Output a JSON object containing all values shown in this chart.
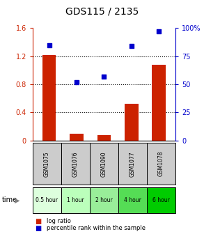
{
  "title": "GDS115 / 2135",
  "samples": [
    "GSM1075",
    "GSM1076",
    "GSM1090",
    "GSM1077",
    "GSM1078"
  ],
  "time_labels": [
    "0.5 hour",
    "1 hour",
    "2 hour",
    "4 hour",
    "6 hour"
  ],
  "log_ratio": [
    1.22,
    0.1,
    0.08,
    0.52,
    1.08
  ],
  "percentile": [
    85,
    52,
    57,
    84,
    97
  ],
  "bar_color": "#cc2200",
  "dot_color": "#0000cc",
  "ylim_left": [
    0,
    1.6
  ],
  "ylim_right": [
    0,
    100
  ],
  "yticks_left": [
    0,
    0.4,
    0.8,
    1.2,
    1.6
  ],
  "ytick_labels_left": [
    "0",
    "0.4",
    "0.8",
    "1.2",
    "1.6"
  ],
  "yticks_right": [
    0,
    25,
    50,
    75,
    100
  ],
  "ytick_labels_right": [
    "0",
    "25",
    "50",
    "75",
    "100%"
  ],
  "hlines": [
    0.4,
    0.8,
    1.2
  ],
  "time_colors": [
    "#ddffdd",
    "#bbffbb",
    "#99ee99",
    "#55dd55",
    "#00cc00"
  ],
  "sample_bg": "#cccccc",
  "bg_color": "#ffffff"
}
